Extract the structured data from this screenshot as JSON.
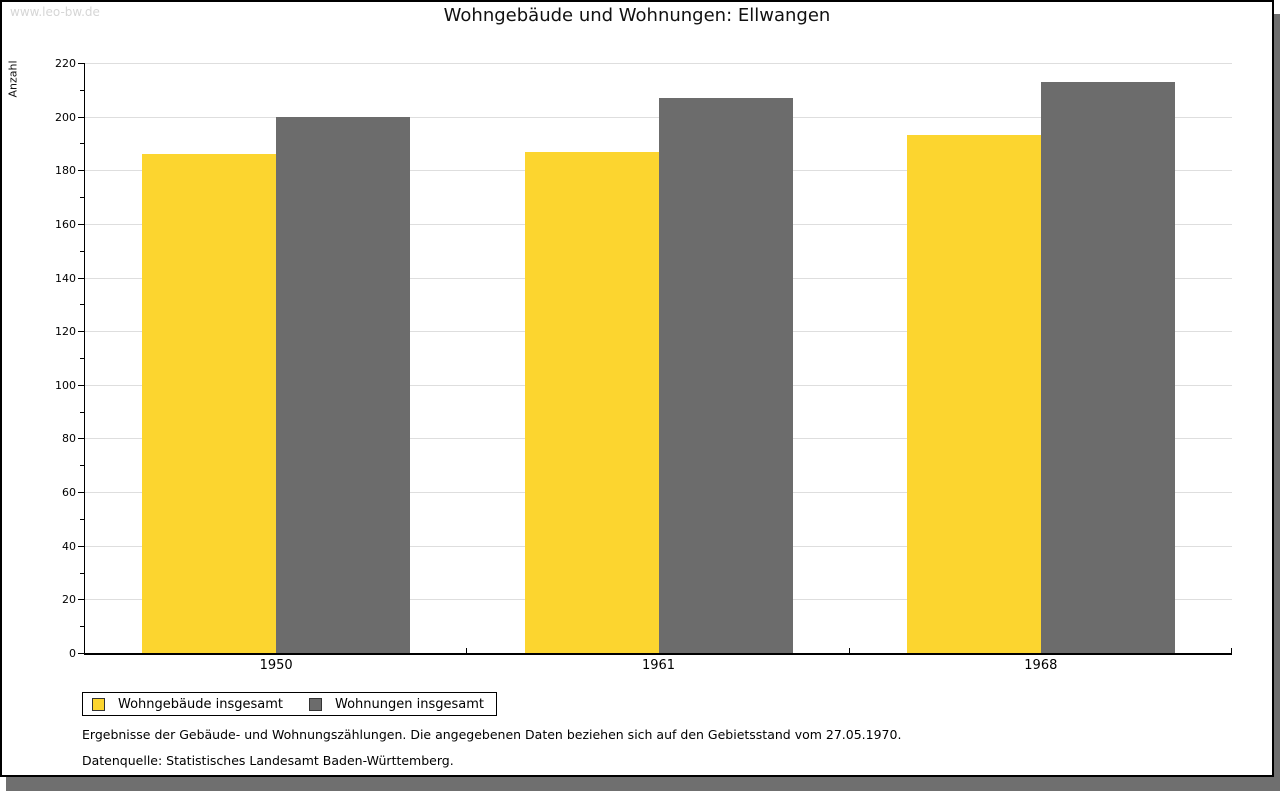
{
  "watermark": "www.leo-bw.de",
  "title": "Wohngebäude und Wohnungen: Ellwangen",
  "chart_data": {
    "type": "bar",
    "title": "Wohngebäude und Wohnungen: Ellwangen",
    "categories": [
      "1950",
      "1961",
      "1968"
    ],
    "series": [
      {
        "name": "Wohngebäude insgesamt",
        "color": "#FCD52F",
        "values": [
          186,
          187,
          193
        ]
      },
      {
        "name": "Wohnungen insgesamt",
        "color": "#6C6C6C",
        "values": [
          200,
          207,
          213
        ]
      }
    ],
    "xlabel": "",
    "ylabel": "Anzahl",
    "ylim": [
      0,
      220
    ],
    "ytick_step": 20,
    "yminor_step": 10,
    "grid": true,
    "gridline_color": "#dedede",
    "legend_position": "bottom-left"
  },
  "legend": {
    "items": [
      {
        "label": "Wohngebäude insgesamt",
        "color": "#FCD52F"
      },
      {
        "label": "Wohnungen insgesamt",
        "color": "#6C6C6C"
      }
    ]
  },
  "footnotes": {
    "line1": "Ergebnisse der Gebäude- und Wohnungszählungen. Die angegebenen Daten beziehen sich auf den Gebietsstand vom 27.05.1970.",
    "line2": "Datenquelle: Statistisches Landesamt Baden-Württemberg."
  },
  "colors": {
    "series1": "#FCD52F",
    "series2": "#6C6C6C",
    "shadow": "#6F6F6F",
    "gridline": "#DEDEDE",
    "watermark": "#D6D6D6"
  }
}
